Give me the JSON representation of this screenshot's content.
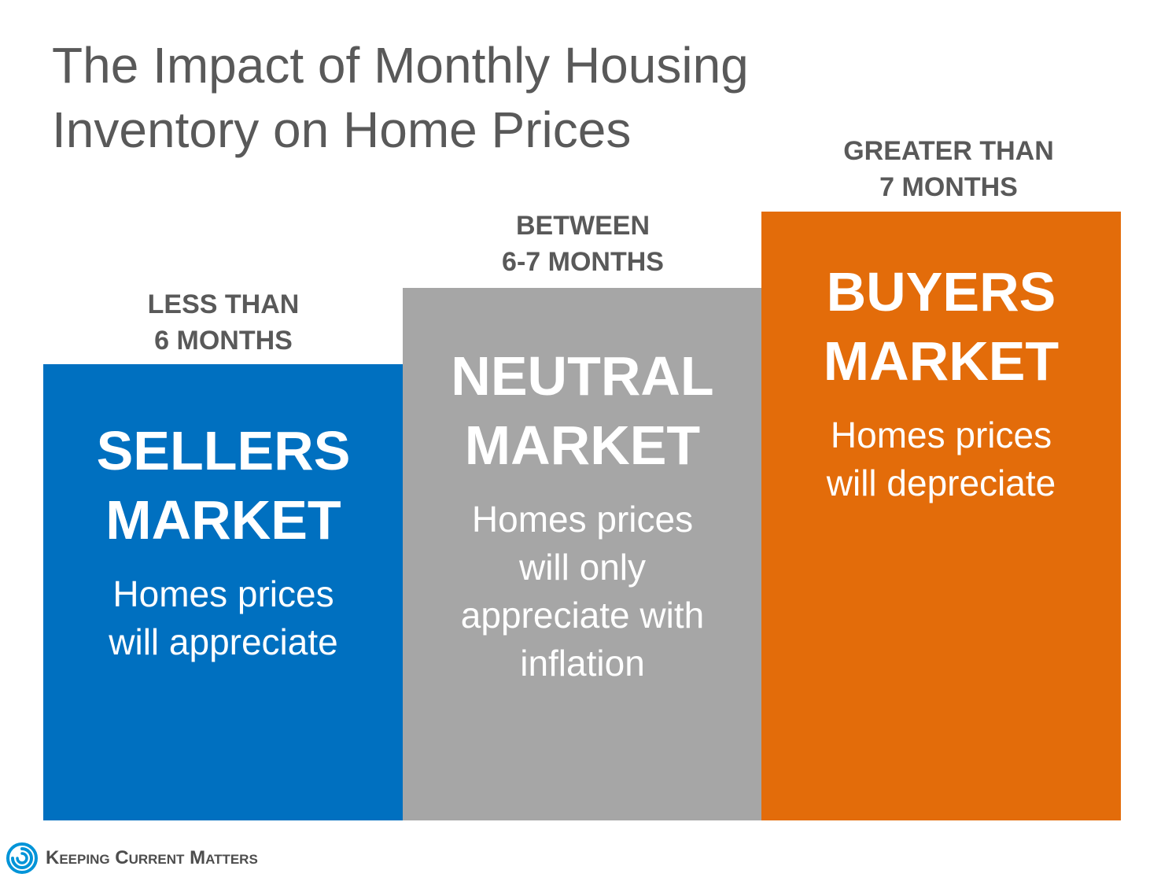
{
  "title": {
    "line1": "The Impact of Monthly Housing",
    "line2": "Inventory on Home Prices"
  },
  "markets": [
    {
      "range_line1": "LESS THAN",
      "range_line2": "6 MONTHS",
      "name_line1": "SELLERS",
      "name_line2": "MARKET",
      "desc_lines": [
        "Homes prices",
        "will appreciate"
      ],
      "color": "#0070c0"
    },
    {
      "range_line1": "BETWEEN",
      "range_line2": "6-7 MONTHS",
      "name_line1": "NEUTRAL",
      "name_line2": "MARKET",
      "desc_lines": [
        "Homes prices",
        "will only",
        "appreciate with",
        "inflation"
      ],
      "color": "#a6a6a6"
    },
    {
      "range_line1": "GREATER THAN",
      "range_line2": "7 MONTHS",
      "name_line1": "BUYERS",
      "name_line2": "MARKET",
      "desc_lines": [
        "Homes prices",
        "will depreciate"
      ],
      "color": "#e36c0a"
    }
  ],
  "logo": {
    "text": "Keeping Current Matters",
    "icon": "kcm-swirl-icon",
    "color": "#0094d8"
  },
  "colors": {
    "title_text": "#595959",
    "label_text": "#595959",
    "block_text": "#ffffff"
  }
}
